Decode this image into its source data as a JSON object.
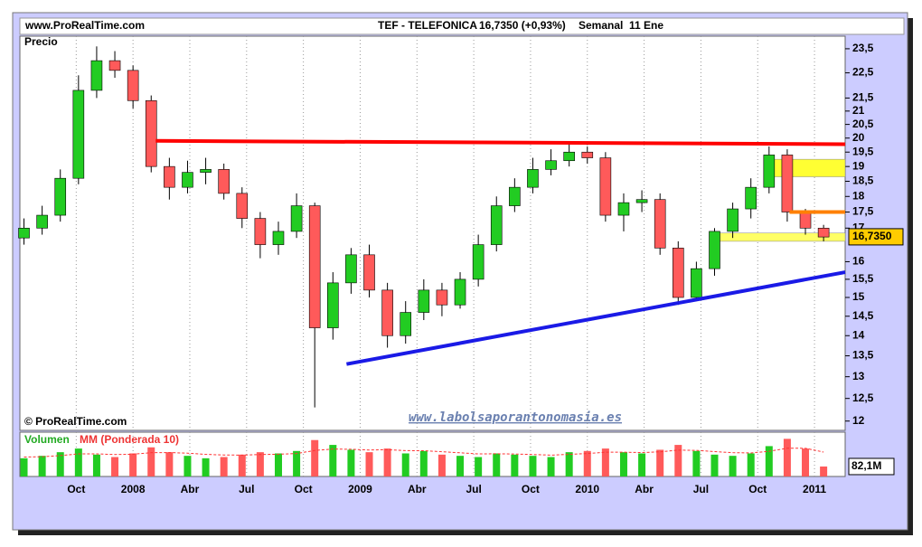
{
  "chart_data": {
    "type": "candlestick",
    "site": "www.ProRealTime.com",
    "title": "TEF - TELEFONICA",
    "subtitle": "16,7350 (+0,93%)",
    "period": "Semanal  11 Ene",
    "y_label": "Precio",
    "copyright": "© ProRealTime.com",
    "watermark": "www.labolsaporantonomasia.es",
    "log_scale": true,
    "grid": true,
    "up_color": "#22cc22",
    "down_color": "#ff5a5a",
    "x": [
      2007.52,
      2007.6,
      2007.68,
      2007.76,
      2007.84,
      2007.92,
      2008.0,
      2008.08,
      2008.16,
      2008.24,
      2008.32,
      2008.4,
      2008.48,
      2008.56,
      2008.64,
      2008.72,
      2008.8,
      2008.88,
      2008.96,
      2009.04,
      2009.12,
      2009.2,
      2009.28,
      2009.36,
      2009.44,
      2009.52,
      2009.6,
      2009.68,
      2009.76,
      2009.84,
      2009.92,
      2010.0,
      2010.08,
      2010.16,
      2010.24,
      2010.32,
      2010.4,
      2010.48,
      2010.56,
      2010.64,
      2010.72,
      2010.8,
      2010.88,
      2010.96,
      2011.04
    ],
    "open": [
      16.7,
      17.0,
      17.4,
      18.6,
      21.8,
      23.0,
      22.6,
      21.4,
      19.0,
      18.3,
      18.8,
      18.9,
      18.1,
      17.3,
      16.5,
      16.9,
      17.7,
      14.2,
      15.4,
      16.2,
      15.2,
      14.0,
      14.6,
      15.2,
      14.8,
      15.5,
      16.5,
      17.7,
      18.3,
      18.9,
      19.2,
      19.5,
      19.3,
      17.4,
      17.8,
      17.9,
      16.4,
      15.0,
      15.8,
      16.9,
      17.6,
      18.3,
      19.4,
      17.5,
      17.0
    ],
    "high": [
      17.3,
      17.7,
      18.9,
      22.4,
      23.6,
      23.4,
      22.8,
      21.6,
      19.3,
      19.2,
      19.3,
      19.1,
      18.3,
      17.5,
      17.2,
      18.1,
      17.8,
      15.7,
      16.4,
      16.5,
      15.4,
      14.9,
      15.5,
      15.4,
      15.7,
      16.8,
      18.0,
      18.6,
      19.3,
      19.6,
      19.8,
      19.7,
      19.5,
      18.1,
      18.2,
      18.1,
      16.6,
      16.0,
      17.0,
      17.8,
      18.6,
      19.7,
      19.6,
      17.6,
      17.1
    ],
    "low": [
      16.5,
      16.8,
      17.2,
      18.4,
      21.5,
      22.3,
      21.1,
      18.8,
      17.9,
      18.1,
      18.4,
      17.9,
      17.0,
      16.1,
      16.2,
      16.7,
      12.3,
      13.9,
      15.1,
      15.0,
      13.7,
      13.8,
      14.4,
      14.5,
      14.7,
      15.3,
      16.3,
      17.5,
      18.1,
      18.7,
      19.0,
      19.1,
      17.2,
      16.9,
      17.5,
      16.2,
      14.8,
      14.9,
      15.6,
      16.7,
      17.3,
      18.1,
      17.2,
      16.8,
      16.6
    ],
    "close": [
      17.0,
      17.4,
      18.6,
      21.8,
      23.0,
      22.6,
      21.4,
      19.0,
      18.3,
      18.8,
      18.9,
      18.1,
      17.3,
      16.5,
      16.9,
      17.7,
      14.2,
      15.4,
      16.2,
      15.2,
      14.0,
      14.6,
      15.2,
      14.8,
      15.5,
      16.5,
      17.7,
      18.3,
      18.9,
      19.2,
      19.5,
      19.3,
      17.4,
      17.8,
      17.9,
      16.4,
      15.0,
      15.8,
      16.9,
      17.6,
      18.3,
      19.4,
      17.5,
      17.0,
      16.73
    ],
    "last_label": {
      "value": 16.735,
      "label": "16,7350"
    },
    "xlim": [
      2007.502,
      2011.135
    ],
    "xticks": [
      {
        "value": 2007.75,
        "label": "Oct"
      },
      2008,
      {
        "value": 2008.25,
        "label": "Abr"
      },
      {
        "value": 2008.5,
        "label": "Jul"
      },
      {
        "value": 2008.75,
        "label": "Oct"
      },
      2009,
      {
        "value": 2009.25,
        "label": "Abr"
      },
      {
        "value": 2009.5,
        "label": "Jul"
      },
      {
        "value": 2009.75,
        "label": "Oct"
      },
      2010,
      {
        "value": 2010.25,
        "label": "Abr"
      },
      {
        "value": 2010.5,
        "label": "Jul"
      },
      {
        "value": 2010.75,
        "label": "Oct"
      },
      2011
    ],
    "ylim": [
      11.8,
      24.04
    ],
    "yticks": [
      {
        "value": 23.5,
        "label": "23,5"
      },
      {
        "value": 22.5,
        "label": "22,5"
      },
      {
        "value": 21.5,
        "label": "21,5"
      },
      21,
      {
        "value": 20.5,
        "label": "20,5"
      },
      20,
      {
        "value": 19.5,
        "label": "19,5"
      },
      19,
      {
        "value": 18.5,
        "label": "18,5"
      },
      18,
      {
        "value": 17.5,
        "label": "17,5"
      },
      17,
      16,
      {
        "value": 15.5,
        "label": "15,5"
      },
      15,
      {
        "value": 14.5,
        "label": "14,5"
      },
      14,
      {
        "value": 13.5,
        "label": "13,5"
      },
      13,
      {
        "value": 12.5,
        "label": "12,5"
      },
      12
    ],
    "lines": [
      {
        "color": "#ff0000",
        "x": [
          2008.1,
          2011.135
        ],
        "y": [
          19.9,
          19.78
        ]
      },
      {
        "color": "#1a1ae6",
        "x": [
          2008.94,
          2011.135
        ],
        "y": [
          13.3,
          15.7
        ]
      },
      {
        "color": "#ff8000",
        "x": [
          2010.89,
          2011.135
        ],
        "y": [
          17.5,
          17.5
        ]
      }
    ],
    "zones": [
      {
        "color": "#ffff33",
        "x": [
          2010.82,
          2011.135
        ],
        "y": [
          18.65,
          19.25
        ]
      },
      {
        "color": "#ffff66",
        "x": [
          2010.54,
          2011.135
        ],
        "y": [
          16.6,
          16.85
        ]
      }
    ],
    "volume": {
      "name": "Volumen",
      "ma_name": "MM (Ponderada 10)",
      "ma_color": "#ff3333",
      "ylim": [
        0,
        350
      ],
      "values": [
        150,
        170,
        200,
        230,
        180,
        160,
        190,
        240,
        200,
        170,
        150,
        160,
        180,
        200,
        190,
        210,
        300,
        260,
        220,
        200,
        230,
        190,
        210,
        180,
        170,
        160,
        190,
        180,
        170,
        160,
        200,
        210,
        230,
        200,
        190,
        220,
        260,
        210,
        180,
        170,
        190,
        250,
        310,
        230,
        82.1
      ],
      "ma_values": [
        160,
        163,
        172,
        186,
        186,
        181,
        183,
        196,
        197,
        192,
        182,
        177,
        176,
        181,
        183,
        189,
        214,
        226,
        224,
        218,
        221,
        213,
        212,
        204,
        195,
        186,
        187,
        185,
        181,
        176,
        182,
        189,
        200,
        200,
        197,
        203,
        217,
        215,
        205,
        196,
        194,
        207,
        233,
        232,
        201
      ],
      "last_label": {
        "value": 82.1,
        "label": "82,1M"
      }
    }
  }
}
